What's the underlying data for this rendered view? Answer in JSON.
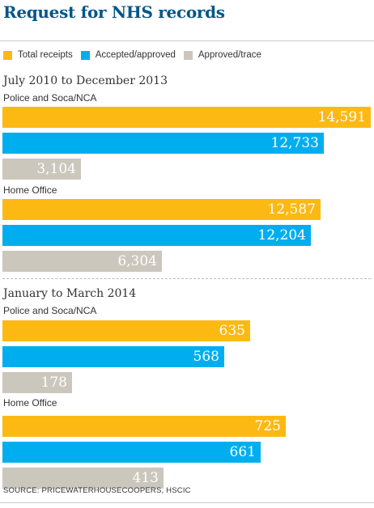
{
  "title": "Request for NHS records",
  "legend": [
    {
      "label": "Total receipts",
      "color": "#fdb913"
    },
    {
      "label": "Accepted/approved",
      "color": "#00aeef"
    },
    {
      "label": "Approved/trace",
      "color": "#cbc7bd"
    }
  ],
  "source": "SOURCE: PRICEWATERHOUSECOOPERS, HSCIC",
  "chart_data": [
    {
      "type": "bar",
      "orientation": "horizontal",
      "title": "July 2010 to December 2013",
      "categories": [
        "Police and Soca/NCA",
        "Home Office"
      ],
      "series": [
        {
          "name": "Total receipts",
          "values": [
            14591,
            12587
          ],
          "labels": [
            "14,591",
            "12,587"
          ]
        },
        {
          "name": "Accepted/approved",
          "values": [
            12733,
            12204
          ],
          "labels": [
            "12,733",
            "12,204"
          ]
        },
        {
          "name": "Approved/trace",
          "values": [
            3104,
            6304
          ],
          "labels": [
            "3,104",
            "6,304"
          ]
        }
      ],
      "xlim": [
        0,
        14591
      ],
      "grid": false,
      "legend": "top"
    },
    {
      "type": "bar",
      "orientation": "horizontal",
      "title": "January to March 2014",
      "categories": [
        "Police and Soca/NCA",
        "Home Office"
      ],
      "series": [
        {
          "name": "Total receipts",
          "values": [
            635,
            725
          ],
          "labels": [
            "635",
            "725"
          ]
        },
        {
          "name": "Accepted/approved",
          "values": [
            568,
            661
          ],
          "labels": [
            "568",
            "661"
          ]
        },
        {
          "name": "Approved/trace",
          "values": [
            178,
            413
          ],
          "labels": [
            "178",
            "413"
          ]
        }
      ],
      "xlim": [
        0,
        885
      ],
      "grid": false,
      "legend": "top"
    }
  ]
}
